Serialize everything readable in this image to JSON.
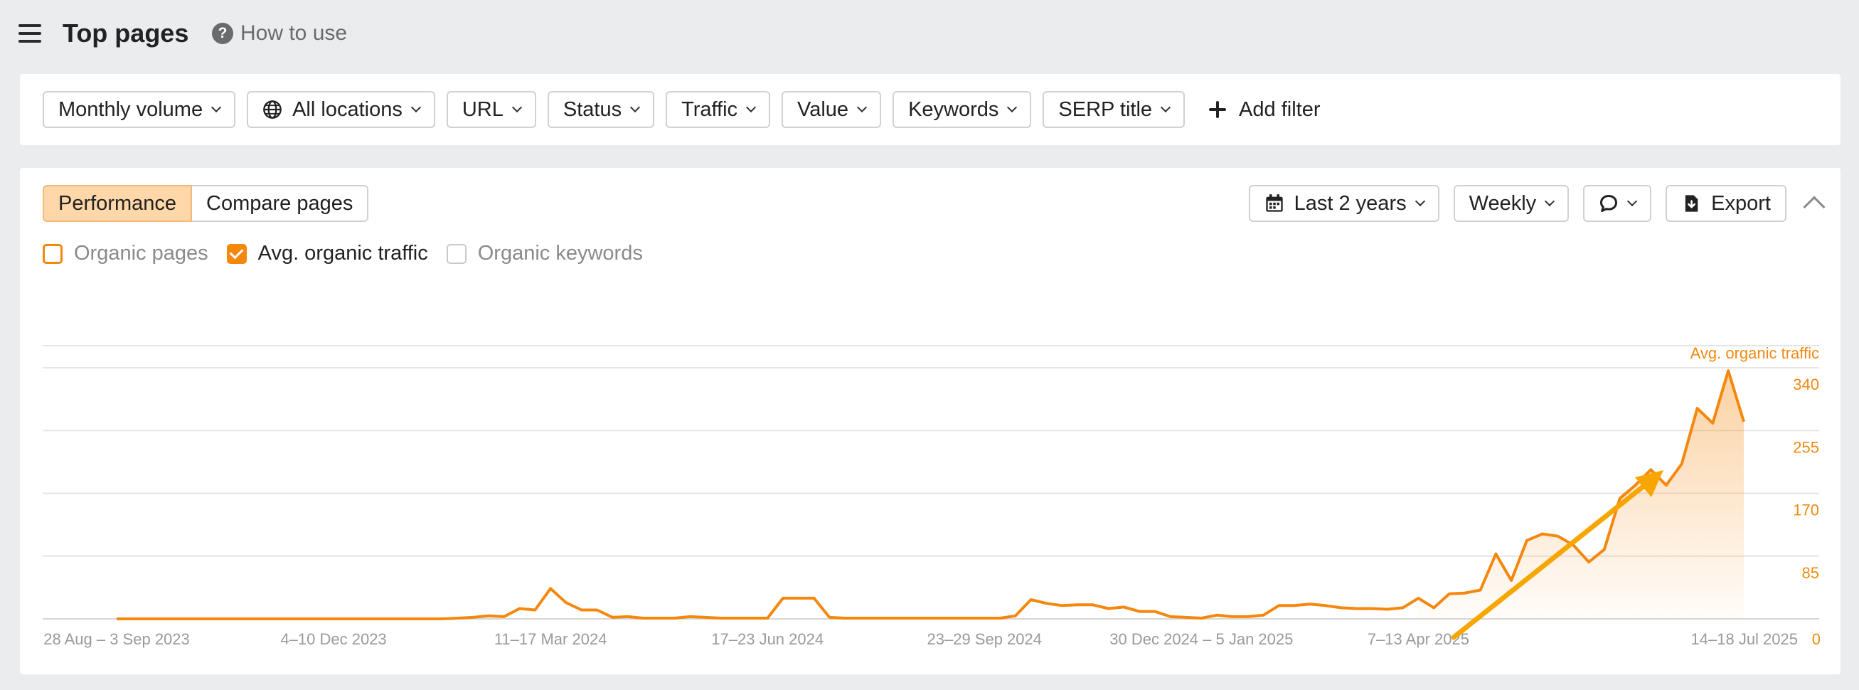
{
  "header": {
    "title": "Top pages",
    "how_to_use": "How to use"
  },
  "filters": {
    "monthly_volume": "Monthly volume",
    "all_locations": "All locations",
    "url": "URL",
    "status": "Status",
    "traffic": "Traffic",
    "value": "Value",
    "keywords": "Keywords",
    "serp_title": "SERP title",
    "add_filter": "Add filter"
  },
  "toolbar": {
    "tab_performance": "Performance",
    "tab_compare": "Compare pages",
    "date_range": "Last 2 years",
    "interval": "Weekly",
    "export": "Export"
  },
  "legend": {
    "organic_pages": "Organic pages",
    "avg_organic_traffic": "Avg. organic traffic",
    "organic_keywords": "Organic keywords"
  },
  "colors": {
    "accent": "#f5870d",
    "annotation_arrow": "#f7a600"
  },
  "chart_data": {
    "type": "area",
    "series": [
      {
        "name": "Avg. organic traffic",
        "values": [
          0,
          0,
          0,
          0,
          0,
          0,
          0,
          0,
          0,
          0,
          0,
          0,
          0,
          0,
          0,
          0,
          0,
          0,
          0,
          0,
          0,
          0,
          1,
          2,
          4,
          3,
          14,
          12,
          41,
          22,
          12,
          12,
          2,
          3,
          1,
          1,
          1,
          3,
          2,
          1,
          1,
          1,
          1,
          28,
          28,
          28,
          2,
          1,
          1,
          1,
          1,
          1,
          1,
          1,
          1,
          1,
          1,
          1,
          4,
          26,
          21,
          18,
          19,
          19,
          14,
          16,
          10,
          10,
          3,
          2,
          1,
          5,
          3,
          3,
          5,
          18,
          18,
          20,
          18,
          15,
          14,
          14,
          13,
          15,
          28,
          15,
          34,
          35,
          39,
          88,
          52,
          106,
          115,
          112,
          100,
          77,
          94,
          163,
          181,
          202,
          181,
          210,
          285,
          265,
          336,
          267
        ]
      }
    ],
    "x_ticks": [
      "28 Aug – 3 Sep 2023",
      "4–10 Dec 2023",
      "11–17 Mar 2024",
      "17–23 Jun 2024",
      "23–29 Sep 2024",
      "30 Dec 2024 – 5 Jan 2025",
      "7–13 Apr 2025",
      "14–18 Jul 2025"
    ],
    "x_tick_index": [
      0,
      14,
      28,
      42,
      56,
      70,
      84,
      98
    ],
    "y_ticks": [
      0,
      85,
      170,
      255,
      340
    ],
    "ylabel": "Avg. organic traffic",
    "ylim": [
      0,
      340
    ],
    "grid": true,
    "annotation": "upward trend arrow"
  }
}
